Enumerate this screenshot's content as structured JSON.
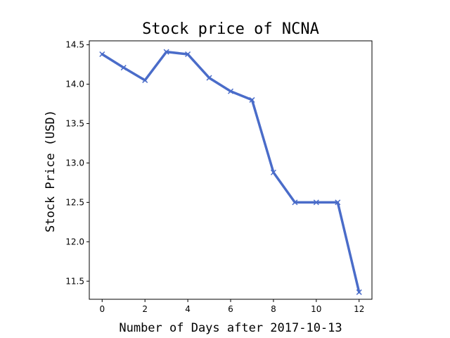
{
  "chart_data": {
    "type": "line",
    "title": "Stock price of NCNA",
    "xlabel": "Number of Days after 2017-10-13",
    "ylabel": "Stock Price (USD)",
    "xlim": [
      -0.6,
      12.6
    ],
    "ylim": [
      11.27,
      14.55
    ],
    "xticks": [
      0,
      2,
      4,
      6,
      8,
      10,
      12
    ],
    "yticks": [
      11.5,
      12.0,
      12.5,
      13.0,
      13.5,
      14.0,
      14.5
    ],
    "ytick_labels": [
      "11.5",
      "12.0",
      "12.5",
      "13.0",
      "13.5",
      "14.0",
      "14.5"
    ],
    "grid": false,
    "line_color": "#4a6cc9",
    "marker": "x",
    "series": [
      {
        "x": [
          0,
          1,
          2,
          3,
          4,
          5,
          6,
          7,
          8,
          9,
          10,
          11,
          12
        ],
        "values": [
          14.38,
          14.21,
          14.05,
          14.41,
          14.38,
          14.08,
          13.91,
          13.8,
          12.88,
          12.5,
          12.5,
          12.5,
          11.36
        ]
      }
    ]
  }
}
